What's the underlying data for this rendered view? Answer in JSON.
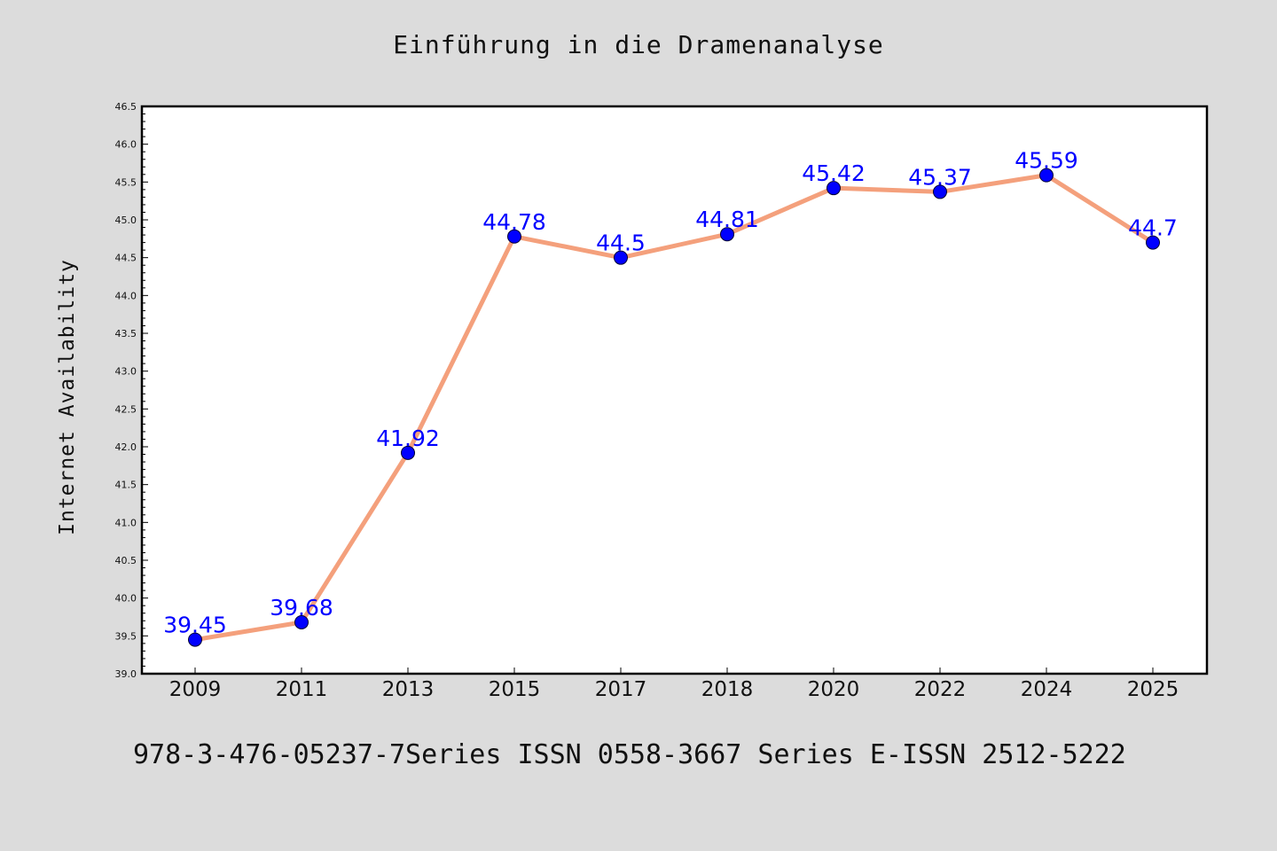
{
  "chart_data": {
    "type": "line",
    "title": "Einführung in die Dramenanalyse",
    "xlabel": "",
    "ylabel": "Internet Availability",
    "categories": [
      "2009",
      "2011",
      "2013",
      "2015",
      "2017",
      "2018",
      "2020",
      "2022",
      "2024",
      "2025"
    ],
    "series": [
      {
        "values": [
          39.45,
          39.68,
          41.92,
          44.78,
          44.5,
          44.81,
          45.42,
          45.37,
          45.59,
          44.7
        ],
        "data_labels": [
          "39.45",
          "39.68",
          "41.92",
          "44.78",
          "44.5",
          "44.81",
          "45.42",
          "45.37",
          "45.59",
          "44.7"
        ],
        "line_color": "#f4a07c",
        "marker_color": "#0000ff"
      }
    ],
    "ylim": [
      39.0,
      46.5
    ],
    "y_ticks": [
      "39.0",
      "39.5",
      "40.0",
      "40.5",
      "41.0",
      "41.5",
      "42.0",
      "42.5",
      "43.0",
      "43.5",
      "44.0",
      "44.5",
      "45.0",
      "45.5",
      "46.0",
      "46.5"
    ],
    "y_tick_step": 0.5,
    "y_minor_per_major": 5,
    "grid": false,
    "legend": "none",
    "caption": "978-3-476-05237-7Series ISSN 0558-3667 Series E-ISSN 2512-5222",
    "colors": {
      "background": "#dcdcdc",
      "plot_background": "#ffffff",
      "axis": "#000000",
      "data_label": "#0000ff"
    }
  }
}
